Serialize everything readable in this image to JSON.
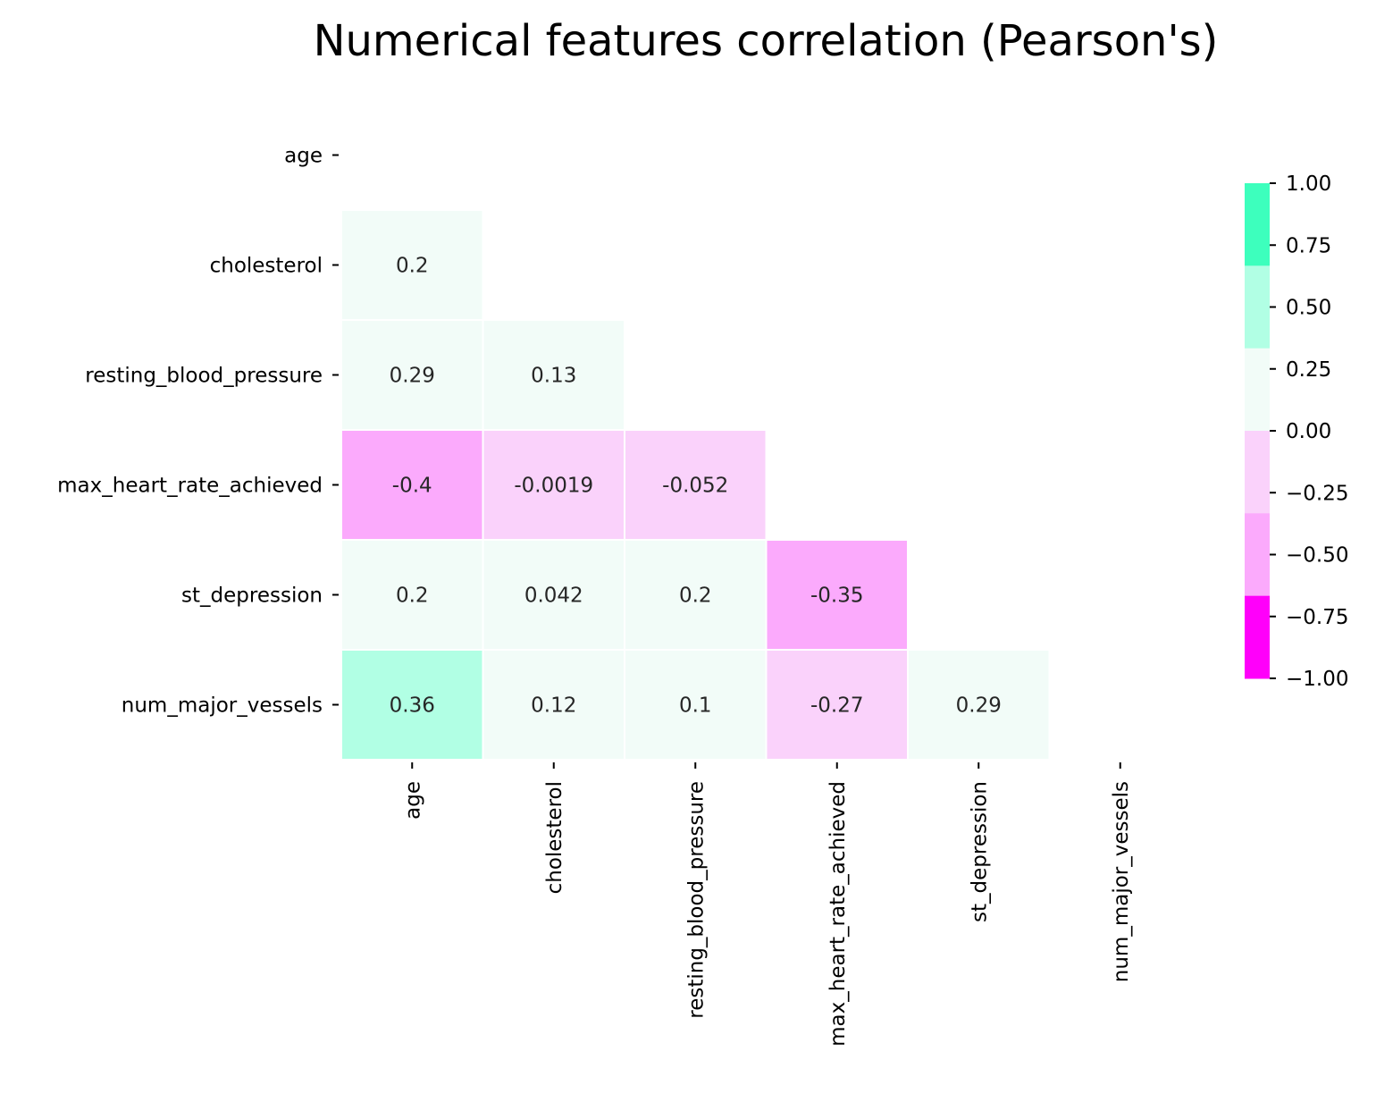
{
  "chart_data": {
    "type": "heatmap",
    "title": "Numerical features correlation (Pearson's)",
    "variables": [
      "age",
      "cholesterol",
      "resting_blood_pressure",
      "max_heart_rate_achieved",
      "st_depression",
      "num_major_vessels"
    ],
    "mask": "upper-triangle-including-diagonal",
    "cells": [
      {
        "row": "cholesterol",
        "col": "age",
        "value": 0.2,
        "label": "0.2"
      },
      {
        "row": "resting_blood_pressure",
        "col": "age",
        "value": 0.29,
        "label": "0.29"
      },
      {
        "row": "resting_blood_pressure",
        "col": "cholesterol",
        "value": 0.13,
        "label": "0.13"
      },
      {
        "row": "max_heart_rate_achieved",
        "col": "age",
        "value": -0.4,
        "label": "-0.4"
      },
      {
        "row": "max_heart_rate_achieved",
        "col": "cholesterol",
        "value": -0.0019,
        "label": "-0.0019"
      },
      {
        "row": "max_heart_rate_achieved",
        "col": "resting_blood_pressure",
        "value": -0.052,
        "label": "-0.052"
      },
      {
        "row": "st_depression",
        "col": "age",
        "value": 0.2,
        "label": "0.2"
      },
      {
        "row": "st_depression",
        "col": "cholesterol",
        "value": 0.042,
        "label": "0.042"
      },
      {
        "row": "st_depression",
        "col": "resting_blood_pressure",
        "value": 0.2,
        "label": "0.2"
      },
      {
        "row": "st_depression",
        "col": "max_heart_rate_achieved",
        "value": -0.35,
        "label": "-0.35"
      },
      {
        "row": "num_major_vessels",
        "col": "age",
        "value": 0.36,
        "label": "0.36"
      },
      {
        "row": "num_major_vessels",
        "col": "cholesterol",
        "value": 0.12,
        "label": "0.12"
      },
      {
        "row": "num_major_vessels",
        "col": "resting_blood_pressure",
        "value": 0.1,
        "label": "0.1"
      },
      {
        "row": "num_major_vessels",
        "col": "max_heart_rate_achieved",
        "value": -0.27,
        "label": "-0.27"
      },
      {
        "row": "num_major_vessels",
        "col": "st_depression",
        "value": 0.29,
        "label": "0.29"
      }
    ],
    "colorbar": {
      "range": [
        -1,
        1
      ],
      "ticks": [
        {
          "value": 1.0,
          "label": "1.00"
        },
        {
          "value": 0.75,
          "label": "0.75"
        },
        {
          "value": 0.5,
          "label": "0.50"
        },
        {
          "value": 0.25,
          "label": "0.25"
        },
        {
          "value": 0.0,
          "label": "0.00"
        },
        {
          "value": -0.25,
          "label": "−0.25"
        },
        {
          "value": -0.5,
          "label": "−0.50"
        },
        {
          "value": -0.75,
          "label": "−0.75"
        },
        {
          "value": -1.0,
          "label": "−1.00"
        }
      ],
      "bins": [
        {
          "from": 0.6667,
          "to": 1.0,
          "color": "#3dffbd"
        },
        {
          "from": 0.3333,
          "to": 0.6667,
          "color": "#b1ffe4"
        },
        {
          "from": 0.0,
          "to": 0.3333,
          "color": "#f2fcf8"
        },
        {
          "from": -0.3333,
          "to": 0.0,
          "color": "#fad2fb"
        },
        {
          "from": -0.6667,
          "to": -0.3333,
          "color": "#fbaafc"
        },
        {
          "from": -1.0,
          "to": -0.6667,
          "color": "#ff00fa"
        }
      ]
    },
    "grid": false,
    "legend": "right (colorbar)"
  }
}
